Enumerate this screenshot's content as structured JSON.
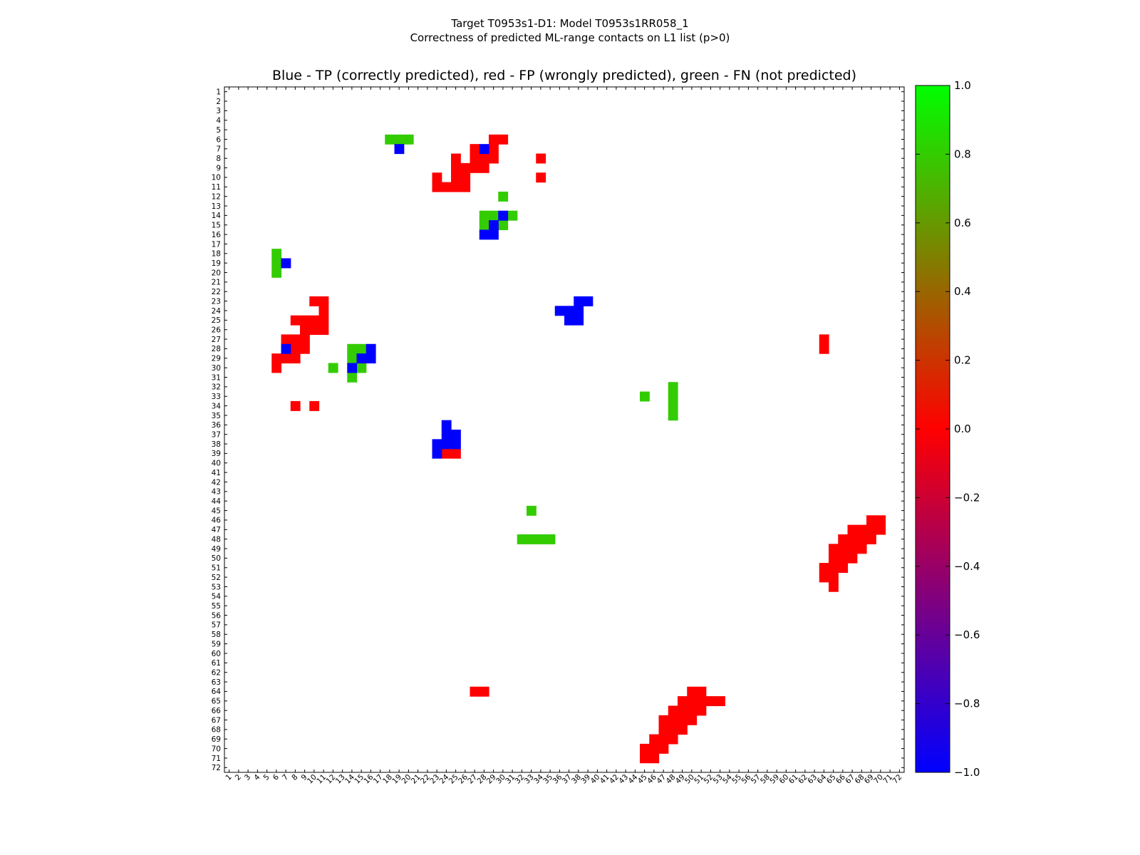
{
  "figure": {
    "suptitle_line1": "Target T0953s1-D1: Model T0953s1RR058_1",
    "suptitle_line2": "Correctness of predicted ML-range contacts on L1 list (p>0)"
  },
  "chart_data": {
    "type": "heatmap",
    "title": "Blue - TP (correctly predicted), red - FP (wrongly predicted), green - FN (not predicted)",
    "xlabel": "",
    "ylabel": "",
    "n": 72,
    "xlim": [
      1,
      72
    ],
    "ylim": [
      1,
      72
    ],
    "y_axis_inverted": true,
    "x_tick_labels": [
      "1",
      "2",
      "3",
      "4",
      "5",
      "6",
      "7",
      "8",
      "9",
      "10",
      "11",
      "12",
      "13",
      "14",
      "15",
      "16",
      "17",
      "18",
      "19",
      "20",
      "21",
      "22",
      "23",
      "24",
      "25",
      "26",
      "27",
      "28",
      "29",
      "30",
      "31",
      "32",
      "33",
      "34",
      "35",
      "36",
      "37",
      "38",
      "39",
      "40",
      "41",
      "42",
      "43",
      "44",
      "45",
      "46",
      "47",
      "48",
      "49",
      "50",
      "51",
      "52",
      "53",
      "54",
      "55",
      "56",
      "57",
      "58",
      "59",
      "60",
      "61",
      "62",
      "63",
      "64",
      "65",
      "66",
      "67",
      "68",
      "69",
      "70",
      "71",
      "72"
    ],
    "y_tick_labels": [
      "1",
      "2",
      "3",
      "4",
      "5",
      "6",
      "7",
      "8",
      "9",
      "10",
      "11",
      "12",
      "13",
      "14",
      "15",
      "16",
      "17",
      "18",
      "19",
      "20",
      "21",
      "22",
      "23",
      "24",
      "25",
      "26",
      "27",
      "28",
      "29",
      "30",
      "31",
      "32",
      "33",
      "34",
      "35",
      "36",
      "37",
      "38",
      "39",
      "40",
      "41",
      "42",
      "43",
      "44",
      "45",
      "46",
      "47",
      "48",
      "49",
      "50",
      "51",
      "52",
      "53",
      "54",
      "55",
      "56",
      "57",
      "58",
      "59",
      "60",
      "61",
      "62",
      "63",
      "64",
      "65",
      "66",
      "67",
      "68",
      "69",
      "70",
      "71",
      "72"
    ],
    "value_legend": {
      "TP": -1.0,
      "FP": 0.0,
      "FN": 0.8
    },
    "colors": {
      "TP": "#0000ff",
      "FP": "#ff0000",
      "FN": "#33cc00"
    },
    "cells": {
      "TP": [
        [
          7,
          19
        ],
        [
          7,
          28
        ],
        [
          14,
          30
        ],
        [
          15,
          29
        ],
        [
          16,
          28
        ],
        [
          16,
          29
        ],
        [
          19,
          7
        ],
        [
          23,
          38
        ],
        [
          23,
          39
        ],
        [
          24,
          36
        ],
        [
          24,
          37
        ],
        [
          24,
          38
        ],
        [
          25,
          37
        ],
        [
          25,
          38
        ],
        [
          28,
          7
        ],
        [
          28,
          16
        ],
        [
          29,
          15
        ],
        [
          29,
          16
        ],
        [
          30,
          14
        ],
        [
          36,
          24
        ],
        [
          37,
          24
        ],
        [
          37,
          25
        ],
        [
          38,
          23
        ],
        [
          38,
          24
        ],
        [
          38,
          25
        ],
        [
          39,
          23
        ]
      ],
      "FP": [
        [
          6,
          29
        ],
        [
          6,
          30
        ],
        [
          7,
          27
        ],
        [
          7,
          29
        ],
        [
          8,
          25
        ],
        [
          8,
          27
        ],
        [
          8,
          28
        ],
        [
          8,
          29
        ],
        [
          8,
          34
        ],
        [
          9,
          25
        ],
        [
          9,
          26
        ],
        [
          9,
          27
        ],
        [
          9,
          28
        ],
        [
          10,
          23
        ],
        [
          10,
          25
        ],
        [
          10,
          26
        ],
        [
          10,
          34
        ],
        [
          11,
          23
        ],
        [
          11,
          24
        ],
        [
          11,
          25
        ],
        [
          11,
          26
        ],
        [
          23,
          10
        ],
        [
          23,
          11
        ],
        [
          24,
          11
        ],
        [
          25,
          8
        ],
        [
          25,
          9
        ],
        [
          25,
          10
        ],
        [
          25,
          11
        ],
        [
          26,
          9
        ],
        [
          26,
          10
        ],
        [
          26,
          11
        ],
        [
          27,
          7
        ],
        [
          27,
          8
        ],
        [
          27,
          9
        ],
        [
          27,
          64
        ],
        [
          28,
          8
        ],
        [
          28,
          9
        ],
        [
          28,
          64
        ],
        [
          29,
          6
        ],
        [
          29,
          7
        ],
        [
          29,
          8
        ],
        [
          30,
          6
        ],
        [
          34,
          8
        ],
        [
          34,
          10
        ],
        [
          39,
          24
        ],
        [
          39,
          25
        ],
        [
          46,
          69
        ],
        [
          46,
          70
        ],
        [
          47,
          67
        ],
        [
          47,
          68
        ],
        [
          47,
          69
        ],
        [
          47,
          70
        ],
        [
          48,
          66
        ],
        [
          48,
          67
        ],
        [
          48,
          68
        ],
        [
          48,
          69
        ],
        [
          49,
          65
        ],
        [
          49,
          66
        ],
        [
          49,
          67
        ],
        [
          49,
          68
        ],
        [
          50,
          65
        ],
        [
          50,
          66
        ],
        [
          50,
          67
        ],
        [
          51,
          64
        ],
        [
          51,
          65
        ],
        [
          51,
          66
        ],
        [
          52,
          64
        ],
        [
          52,
          65
        ],
        [
          53,
          65
        ],
        [
          64,
          27
        ],
        [
          64,
          28
        ],
        [
          64,
          50
        ],
        [
          64,
          51
        ],
        [
          65,
          49
        ],
        [
          65,
          50
        ],
        [
          65,
          51
        ],
        [
          65,
          52
        ],
        [
          65,
          53
        ],
        [
          66,
          48
        ],
        [
          66,
          49
        ],
        [
          66,
          50
        ],
        [
          66,
          51
        ],
        [
          67,
          47
        ],
        [
          67,
          48
        ],
        [
          67,
          49
        ],
        [
          67,
          50
        ],
        [
          68,
          47
        ],
        [
          68,
          48
        ],
        [
          68,
          49
        ],
        [
          69,
          46
        ],
        [
          69,
          47
        ],
        [
          69,
          48
        ],
        [
          70,
          45
        ],
        [
          70,
          46
        ],
        [
          70,
          47
        ],
        [
          71,
          45
        ],
        [
          71,
          46
        ]
      ],
      "FN": [
        [
          6,
          18
        ],
        [
          6,
          19
        ],
        [
          6,
          20
        ],
        [
          12,
          30
        ],
        [
          14,
          28
        ],
        [
          14,
          29
        ],
        [
          14,
          31
        ],
        [
          15,
          28
        ],
        [
          15,
          30
        ],
        [
          18,
          6
        ],
        [
          19,
          6
        ],
        [
          20,
          6
        ],
        [
          28,
          14
        ],
        [
          28,
          15
        ],
        [
          29,
          14
        ],
        [
          30,
          12
        ],
        [
          30,
          15
        ],
        [
          31,
          14
        ],
        [
          32,
          48
        ],
        [
          33,
          45
        ],
        [
          33,
          48
        ],
        [
          34,
          48
        ],
        [
          35,
          48
        ],
        [
          45,
          33
        ],
        [
          48,
          32
        ],
        [
          48,
          33
        ],
        [
          48,
          34
        ],
        [
          48,
          35
        ]
      ]
    },
    "colorbar": {
      "range": [
        -1.0,
        1.0
      ],
      "tick_labels": [
        "1.0",
        "0.8",
        "0.6",
        "0.4",
        "0.2",
        "0.0",
        "−0.2",
        "−0.4",
        "−0.6",
        "−0.8",
        "−1.0"
      ],
      "tick_values": [
        1.0,
        0.8,
        0.6,
        0.4,
        0.2,
        0.0,
        -0.2,
        -0.4,
        -0.6,
        -0.8,
        -1.0
      ],
      "color_stops": [
        "#0000ff",
        "#ff0000",
        "#00ff00"
      ]
    }
  }
}
